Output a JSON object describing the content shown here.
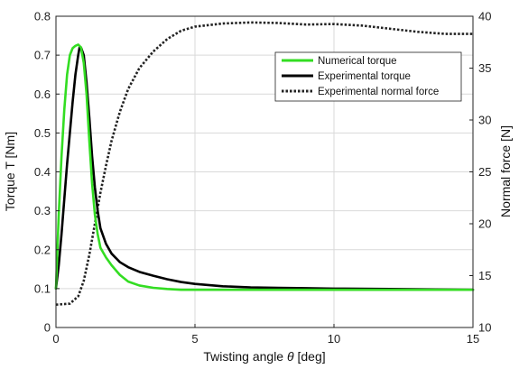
{
  "chart_data": {
    "type": "line",
    "xlabel": "Twisting angle",
    "xlabel_symbol": "θ",
    "xlabel_unit": "[deg]",
    "ylabel_left": "Torque T [Nm]",
    "ylabel_right": "Normal force [N]",
    "xlim": [
      0,
      15
    ],
    "ylim_left": [
      0,
      0.8
    ],
    "ylim_right": [
      10,
      40
    ],
    "x_ticks": [
      "0",
      "5",
      "10",
      "15"
    ],
    "y_left_ticks": [
      "0",
      "0.1",
      "0.2",
      "0.3",
      "0.4",
      "0.5",
      "0.6",
      "0.7",
      "0.8"
    ],
    "y_right_ticks": [
      "10",
      "15",
      "20",
      "25",
      "30",
      "35",
      "40"
    ],
    "grid": true,
    "legend_position": "top-right",
    "series": [
      {
        "name": "Numerical torque",
        "axis": "left",
        "color": "#33dd22",
        "style": "solid",
        "x": [
          0,
          0.1,
          0.2,
          0.3,
          0.4,
          0.5,
          0.6,
          0.7,
          0.8,
          0.9,
          1.0,
          1.1,
          1.2,
          1.3,
          1.4,
          1.5,
          1.6,
          1.8,
          2.0,
          2.3,
          2.6,
          3.0,
          3.5,
          4.0,
          4.5,
          5.0,
          6.0,
          8.0,
          10.0,
          12.0,
          15.0
        ],
        "y": [
          0.1,
          0.29,
          0.44,
          0.56,
          0.65,
          0.7,
          0.718,
          0.724,
          0.727,
          0.72,
          0.68,
          0.6,
          0.48,
          0.37,
          0.29,
          0.24,
          0.205,
          0.18,
          0.16,
          0.135,
          0.118,
          0.108,
          0.102,
          0.099,
          0.097,
          0.097,
          0.097,
          0.097,
          0.097,
          0.097,
          0.097
        ]
      },
      {
        "name": "Experimental torque",
        "axis": "left",
        "color": "#000000",
        "style": "solid",
        "x": [
          0,
          0.1,
          0.2,
          0.3,
          0.4,
          0.5,
          0.6,
          0.7,
          0.8,
          0.85,
          0.9,
          1.0,
          1.1,
          1.2,
          1.3,
          1.4,
          1.5,
          1.6,
          1.8,
          2.0,
          2.3,
          2.6,
          3.0,
          3.5,
          4.0,
          4.5,
          5.0,
          6.0,
          7.0,
          8.0,
          9.0,
          10.0,
          12.0,
          15.0
        ],
        "y": [
          0.1,
          0.16,
          0.24,
          0.33,
          0.42,
          0.5,
          0.58,
          0.65,
          0.7,
          0.72,
          0.72,
          0.7,
          0.63,
          0.54,
          0.44,
          0.36,
          0.3,
          0.255,
          0.215,
          0.19,
          0.168,
          0.155,
          0.143,
          0.133,
          0.124,
          0.117,
          0.112,
          0.106,
          0.103,
          0.102,
          0.101,
          0.1,
          0.099,
          0.097
        ]
      },
      {
        "name": "Experimental normal force",
        "axis": "right",
        "color": "#222222",
        "style": "dotted",
        "x": [
          0,
          0.5,
          0.8,
          1.0,
          1.2,
          1.4,
          1.6,
          1.8,
          2.0,
          2.3,
          2.6,
          3.0,
          3.5,
          4.0,
          4.5,
          5.0,
          5.5,
          6.0,
          6.5,
          7.0,
          8.0,
          9.0,
          10.0,
          11.0,
          12.0,
          13.0,
          14.0,
          15.0
        ],
        "y": [
          12.2,
          12.3,
          13.0,
          14.5,
          17.0,
          20.0,
          23.0,
          25.6,
          28.0,
          30.8,
          33.0,
          35.0,
          36.6,
          37.8,
          38.6,
          39.0,
          39.15,
          39.3,
          39.35,
          39.4,
          39.35,
          39.2,
          39.25,
          39.1,
          38.8,
          38.5,
          38.3,
          38.3
        ]
      }
    ]
  }
}
